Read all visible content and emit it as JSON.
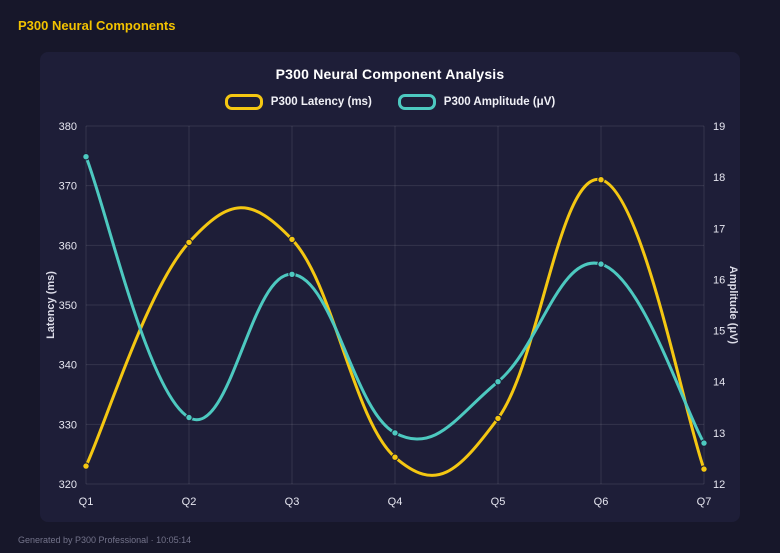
{
  "page": {
    "title": "P300 Neural Components",
    "footer": "Generated by P300 Professional · 10:05:14"
  },
  "colors": {
    "background": "#17172a",
    "panel": "#1e1e38",
    "title_accent": "#f2c200",
    "grid": "rgba(255,255,255,0.10)",
    "tick_text": "#e6e6f0",
    "axis_title_text": "#dcdce8"
  },
  "chart_data": {
    "type": "line",
    "title": "P300 Neural Component Analysis",
    "categories": [
      "Q1",
      "Q2",
      "Q3",
      "Q4",
      "Q5",
      "Q6",
      "Q7"
    ],
    "series": [
      {
        "name": "P300 Latency (ms)",
        "axis": "left",
        "color": "#f4c712",
        "values": [
          323,
          360.5,
          361,
          324.5,
          331,
          371,
          322.5
        ]
      },
      {
        "name": "P300 Amplitude (μV)",
        "axis": "right",
        "color": "#4dc9c0",
        "values": [
          18.4,
          13.3,
          16.1,
          13.0,
          14.0,
          16.3,
          12.8
        ]
      }
    ],
    "left_axis": {
      "label": "Latency (ms)",
      "min": 320,
      "max": 380,
      "step": 10
    },
    "right_axis": {
      "label": "Amplitude (μV)",
      "min": 12,
      "max": 19,
      "step": 1
    },
    "grid": true,
    "legend_position": "top",
    "smooth": true
  }
}
